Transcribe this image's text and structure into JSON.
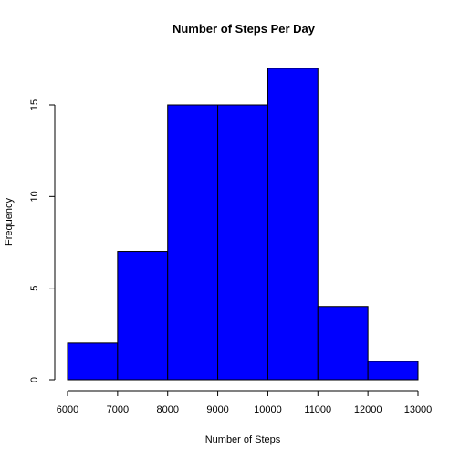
{
  "chart_data": {
    "type": "bar",
    "title": "Number of Steps Per Day",
    "xlabel": "Number of Steps",
    "ylabel": "Frequency",
    "bins": [
      {
        "start": 6000,
        "end": 7000,
        "count": 2
      },
      {
        "start": 7000,
        "end": 8000,
        "count": 7
      },
      {
        "start": 8000,
        "end": 9000,
        "count": 15
      },
      {
        "start": 9000,
        "end": 10000,
        "count": 15
      },
      {
        "start": 10000,
        "end": 11000,
        "count": 17
      },
      {
        "start": 11000,
        "end": 12000,
        "count": 4
      },
      {
        "start": 12000,
        "end": 13000,
        "count": 1
      }
    ],
    "xlim": [
      6000,
      13000
    ],
    "ylim": [
      0,
      17
    ],
    "xticks": [
      "6000",
      "7000",
      "8000",
      "9000",
      "10000",
      "11000",
      "12000",
      "13000"
    ],
    "yticks": [
      "0",
      "5",
      "10",
      "15"
    ],
    "bar_color": "#0000ff",
    "grid": false
  }
}
